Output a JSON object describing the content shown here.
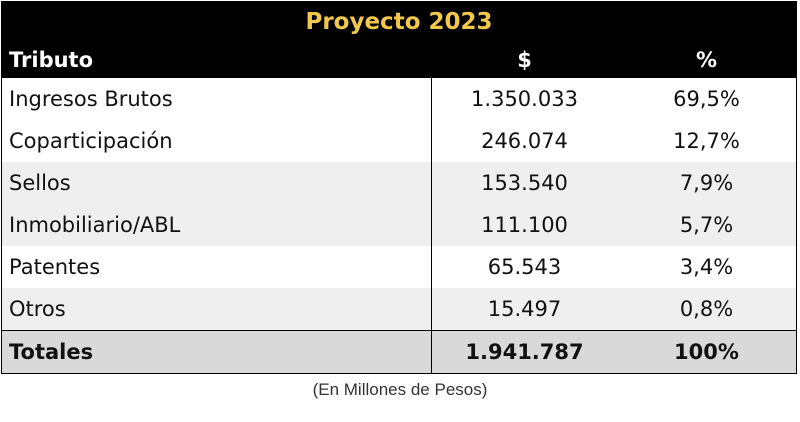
{
  "title": "Proyecto 2023",
  "headers": {
    "tributo": "Tributo",
    "monto": "$",
    "porcentaje": "%"
  },
  "rows": [
    {
      "tributo": "Ingresos Brutos",
      "monto": "1.350.033",
      "porcentaje": "69,5%"
    },
    {
      "tributo": "Coparticipación",
      "monto": "246.074",
      "porcentaje": "12,7%"
    },
    {
      "tributo": "Sellos",
      "monto": "153.540",
      "porcentaje": "7,9%"
    },
    {
      "tributo": "Inmobiliario/ABL",
      "monto": "111.100",
      "porcentaje": "5,7%"
    },
    {
      "tributo": "Patentes",
      "monto": "65.543",
      "porcentaje": "3,4%"
    },
    {
      "tributo": "Otros",
      "monto": "15.497",
      "porcentaje": "0,8%"
    }
  ],
  "totals": {
    "label": "Totales",
    "monto": "1.941.787",
    "porcentaje": "100%"
  },
  "footnote": "(En Millones de Pesos)",
  "colors": {
    "header_bg": "#000000",
    "title_text": "#f1c84b",
    "shade_row": "#efefef",
    "total_row": "#d9d9d9"
  }
}
